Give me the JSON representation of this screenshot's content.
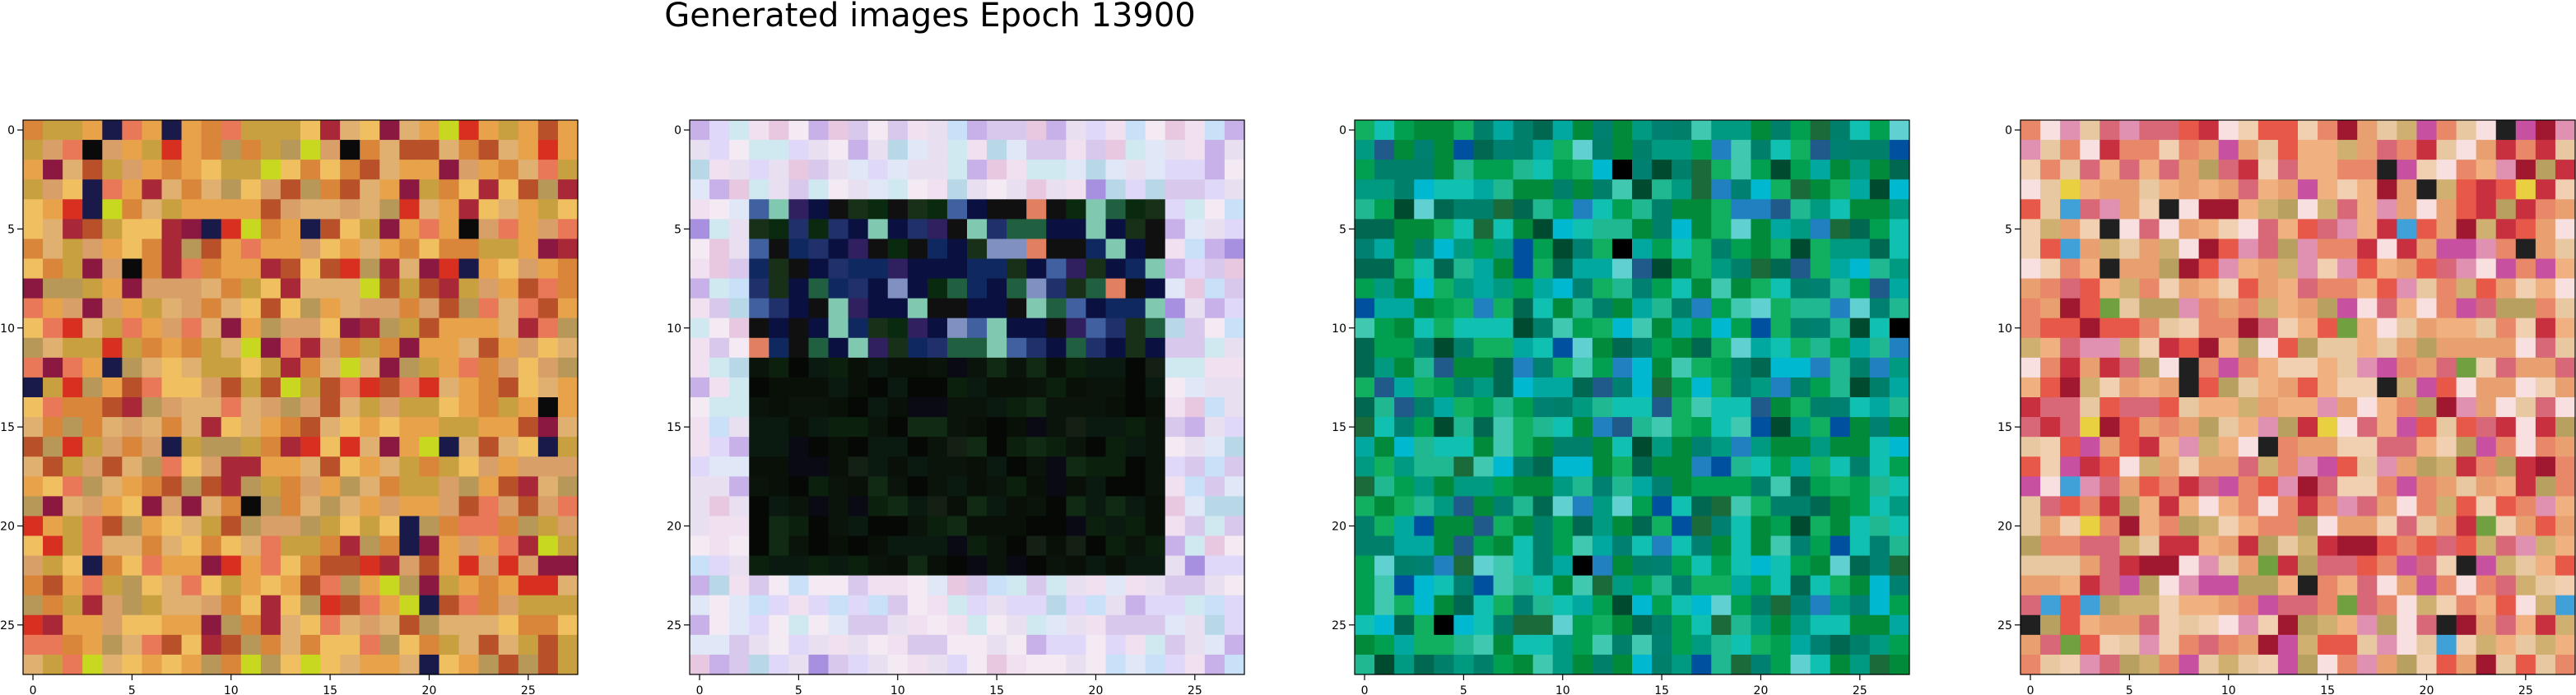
{
  "figure": {
    "title": "Generated images Epoch 13900"
  },
  "chart_data": [
    {
      "type": "heatmap",
      "panel": 1,
      "grid_size": 28,
      "xlim": [
        -0.5,
        27.5
      ],
      "ylim": [
        27.5,
        -0.5
      ],
      "x_ticks": [
        0,
        5,
        10,
        15,
        20,
        25
      ],
      "y_ticks": [
        0,
        5,
        10,
        15,
        20,
        25
      ],
      "x_tick_labels": [
        "0",
        "5",
        "10",
        "15",
        "20",
        "25"
      ],
      "y_tick_labels": [
        "0",
        "5",
        "10",
        "15",
        "20",
        "25"
      ],
      "grid": false,
      "description_palette": [
        "#e8a24a",
        "#d9863a",
        "#c8a040",
        "#e0b070",
        "#f0c060",
        "#b8502a",
        "#a82838",
        "#8a1840",
        "#1a1a4a",
        "#0a0a0a",
        "#c8d820",
        "#d83020",
        "#e87858",
        "#b89858",
        "#d8a068"
      ],
      "palette_weights": [
        14,
        10,
        10,
        10,
        8,
        6,
        4,
        3,
        2,
        1,
        2,
        3,
        6,
        6,
        8
      ],
      "seed": 11
    },
    {
      "type": "heatmap",
      "panel": 2,
      "grid_size": 28,
      "xlim": [
        -0.5,
        27.5
      ],
      "ylim": [
        27.5,
        -0.5
      ],
      "x_ticks": [
        0,
        5,
        10,
        15,
        20,
        25
      ],
      "y_ticks": [
        0,
        5,
        10,
        15,
        20,
        25
      ],
      "x_tick_labels": [
        "0",
        "5",
        "10",
        "15",
        "20",
        "25"
      ],
      "y_tick_labels": [
        "0",
        "5",
        "10",
        "15",
        "20",
        "25"
      ],
      "grid": false,
      "border_palette": [
        "#e8e0f0",
        "#d8c8ec",
        "#c8b0e8",
        "#e0d8f8",
        "#f0e0f0",
        "#d0e8f0",
        "#b8d8e8",
        "#e8c8e0",
        "#a890e0",
        "#c8e0f8",
        "#f4eaf4",
        "#e0e8f8"
      ],
      "border_weights": [
        10,
        8,
        6,
        8,
        8,
        6,
        4,
        5,
        2,
        5,
        8,
        6
      ],
      "inner_palette": [
        "#0a140a",
        "#0a1a10",
        "#0c200e",
        "#081008",
        "#050805",
        "#102a14",
        "#0a0a14",
        "#142014"
      ],
      "inner_weights": [
        10,
        8,
        6,
        8,
        6,
        3,
        3,
        3
      ],
      "noisy_palette": [
        "#0a1040",
        "#102860",
        "#20306a",
        "#183018",
        "#0a2a10",
        "#4060a0",
        "#80c8b0",
        "#302060",
        "#101010",
        "#206040",
        "#e08060",
        "#8090c0"
      ],
      "noisy_weights": [
        6,
        5,
        4,
        5,
        5,
        3,
        2,
        3,
        6,
        3,
        1,
        2
      ],
      "inner_rows": [
        4,
        22
      ],
      "inner_cols": [
        3,
        23
      ],
      "seed": 23
    },
    {
      "type": "heatmap",
      "panel": 3,
      "grid_size": 28,
      "xlim": [
        -0.5,
        27.5
      ],
      "ylim": [
        27.5,
        -0.5
      ],
      "x_ticks": [
        0,
        5,
        10,
        15,
        20,
        25
      ],
      "y_ticks": [
        0,
        5,
        10,
        15,
        20,
        25
      ],
      "x_tick_labels": [
        "0",
        "5",
        "10",
        "15",
        "20",
        "25"
      ],
      "y_tick_labels": [
        "0",
        "5",
        "10",
        "15",
        "20",
        "25"
      ],
      "grid": false,
      "description_palette": [
        "#008a3a",
        "#00a050",
        "#10b060",
        "#00806a",
        "#009a80",
        "#20b890",
        "#00a8a0",
        "#10c0b0",
        "#006850",
        "#008070",
        "#2080c0",
        "#0050a0",
        "#00b8d0",
        "#40c8b0",
        "#1a6a3a",
        "#004a30",
        "#000000",
        "#205a8a",
        "#60d0d0"
      ],
      "palette_weights": [
        10,
        10,
        8,
        8,
        8,
        7,
        7,
        6,
        5,
        6,
        3,
        2,
        3,
        3,
        3,
        2,
        1,
        2,
        2
      ],
      "seed": 37
    },
    {
      "type": "heatmap",
      "panel": 4,
      "grid_size": 28,
      "xlim": [
        -0.5,
        27.5
      ],
      "ylim": [
        27.5,
        -0.5
      ],
      "x_ticks": [
        0,
        5,
        10,
        15,
        20,
        25
      ],
      "y_ticks": [
        0,
        5,
        10,
        15,
        20,
        25
      ],
      "x_tick_labels": [
        "0",
        "5",
        "10",
        "15",
        "20",
        "25"
      ],
      "y_tick_labels": [
        "0",
        "5",
        "10",
        "15",
        "20",
        "25"
      ],
      "grid": false,
      "description_palette": [
        "#e8a070",
        "#f0b080",
        "#e88868",
        "#d86878",
        "#e85848",
        "#c83040",
        "#a01830",
        "#e8c8a0",
        "#f0d0b0",
        "#e090b0",
        "#c850a0",
        "#b8a060",
        "#d0b070",
        "#f8e0e0",
        "#40a0d8",
        "#e8d040",
        "#70a040",
        "#202020"
      ],
      "palette_weights": [
        10,
        8,
        8,
        6,
        5,
        4,
        3,
        6,
        6,
        5,
        3,
        4,
        4,
        4,
        1,
        1,
        1,
        1
      ],
      "seed": 51
    }
  ]
}
